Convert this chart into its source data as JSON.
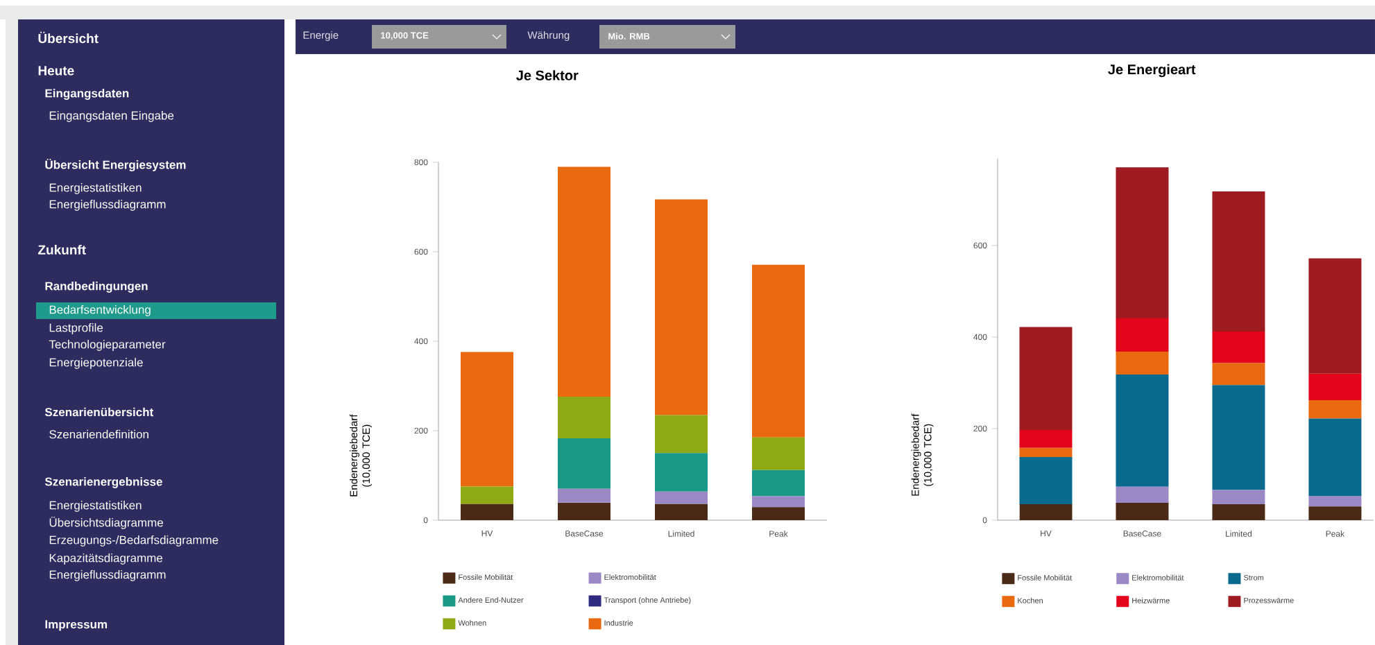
{
  "chart_data": [
    {
      "type": "other",
      "annotations": [
        "Übersicht",
        "Heute",
        "Eingangsdaten",
        "Eingangsdaten Eingabe",
        "Übersicht Energiesystem",
        "Energiestatistiken",
        "Energieflussdiagramm",
        "Zukunft",
        "Randbedingungen",
        "Bedarfsentwicklung",
        "Lastprofile",
        "Technologieparameter",
        "Energiepotenziale",
        "Szenarienübersicht",
        "Szenariendefinition",
        "Szenarienergebnisse",
        "Energiestatistiken",
        "Übersichtsdiagramme",
        "Erzeugungs-/Bedarfsdiagramme",
        "Kapazitätsdiagramme",
        "Energieflussdiagramm",
        "Impressum",
        "Energie",
        "10,000 TCE",
        "Währung",
        "Mio. RMB"
      ]
    },
    {
      "type": "bar",
      "stacked": true,
      "title": "Je Sektor",
      "ylabel": "Endenergiebedarf (10,000 TCE)",
      "categories": [
        "HV",
        "BaseCase",
        "Limited",
        "Peak"
      ],
      "ylim": [
        0,
        800
      ],
      "yticks": [
        0,
        200,
        400,
        600,
        800
      ],
      "legend": "bottom",
      "series": [
        {
          "name": "Fossile Mobilität",
          "color": "#4a2a17",
          "values": [
            36,
            39,
            36,
            29
          ]
        },
        {
          "name": "Elektromobilität",
          "color": "#9a89c4",
          "values": [
            0,
            31,
            28,
            25
          ]
        },
        {
          "name": "Andere End-Nutzer",
          "color": "#1a9a86",
          "values": [
            0,
            113,
            86,
            58
          ]
        },
        {
          "name": "Transport (ohne Antriebe)",
          "color": "#2d2a7f",
          "values": [
            0,
            0,
            0,
            0
          ]
        },
        {
          "name": "Wohnen",
          "color": "#8ea816",
          "values": [
            39,
            93,
            85,
            73
          ]
        },
        {
          "name": "Industrie",
          "color": "#e8690f",
          "values": [
            301,
            514,
            482,
            386
          ]
        }
      ]
    },
    {
      "type": "bar",
      "stacked": true,
      "title": "Je Energieart",
      "ylabel": "Endenergiebedarf (10,000 TCE)",
      "categories": [
        "HV",
        "BaseCase",
        "Limited",
        "Peak"
      ],
      "ylim": [
        0,
        790
      ],
      "yticks": [
        0,
        200,
        400,
        600
      ],
      "legend": "bottom",
      "series": [
        {
          "name": "Fossile Mobilität",
          "color": "#4a2a17",
          "values": [
            35,
            38,
            35,
            30
          ]
        },
        {
          "name": "Elektromobilität",
          "color": "#9a89c4",
          "values": [
            0,
            35,
            31,
            23
          ]
        },
        {
          "name": "Strom",
          "color": "#0a6a8e",
          "values": [
            103,
            245,
            229,
            169
          ]
        },
        {
          "name": "Kochen",
          "color": "#e8690f",
          "values": [
            20,
            50,
            48,
            40
          ]
        },
        {
          "name": "Heizwärme",
          "color": "#e3051b",
          "values": [
            39,
            73,
            69,
            58
          ]
        },
        {
          "name": "Prozesswärme",
          "color": "#9e1b22",
          "values": [
            225,
            330,
            306,
            252
          ]
        }
      ]
    }
  ]
}
